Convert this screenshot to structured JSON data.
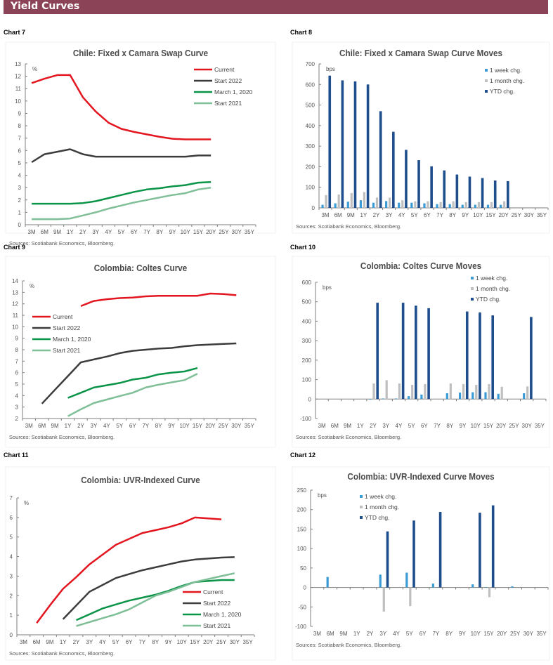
{
  "header": {
    "title": "Yield Curves"
  },
  "colors": {
    "header_bg": "#8b4357",
    "current": "#e3151f",
    "start2022": "#3c3c3c",
    "march2020": "#0a9448",
    "start2021": "#7fbf97",
    "week": "#3a9bd5",
    "month": "#bfbfbf",
    "ytd": "#1f4e8c",
    "axis": "#7f7f7f",
    "title": "#4a4a4a"
  },
  "chart_data": [
    {
      "id": "chart7",
      "label": "Chart 7",
      "type": "line",
      "title": "Chile: Fixed x Camara Swap Curve",
      "unit_label": "%",
      "source": "Sources: Scotiabank Economics, Bloomberg.",
      "categories": [
        "3M",
        "6M",
        "9M",
        "1Y",
        "2Y",
        "3Y",
        "4Y",
        "5Y",
        "6Y",
        "7Y",
        "8Y",
        "9Y",
        "10Y",
        "15Y",
        "20Y",
        "25Y",
        "30Y",
        "35Y"
      ],
      "ylim": [
        0,
        13
      ],
      "yticks": [
        0,
        1,
        2,
        3,
        4,
        5,
        6,
        7,
        8,
        9,
        10,
        11,
        12,
        13
      ],
      "legend_position": "top-right",
      "series": [
        {
          "name": "Current",
          "color_key": "current",
          "values": [
            11.45,
            11.8,
            12.1,
            12.1,
            10.3,
            9.15,
            8.25,
            7.75,
            7.5,
            7.3,
            7.1,
            6.95,
            6.9,
            6.9,
            6.9,
            null,
            null,
            null
          ]
        },
        {
          "name": "Start 2022",
          "color_key": "start2022",
          "values": [
            5.05,
            5.7,
            5.9,
            6.1,
            5.7,
            5.5,
            5.5,
            5.5,
            5.5,
            5.5,
            5.5,
            5.5,
            5.5,
            5.6,
            5.6,
            null,
            null,
            null
          ]
        },
        {
          "name": "March 1, 2020",
          "color_key": "march2020",
          "values": [
            1.7,
            1.7,
            1.7,
            1.7,
            1.75,
            1.9,
            2.15,
            2.4,
            2.65,
            2.85,
            2.95,
            3.1,
            3.2,
            3.4,
            3.45,
            null,
            null,
            null
          ]
        },
        {
          "name": "Start 2021",
          "color_key": "start2021",
          "values": [
            0.45,
            0.45,
            0.45,
            0.5,
            0.75,
            1.0,
            1.3,
            1.55,
            1.8,
            2.0,
            2.2,
            2.4,
            2.55,
            2.85,
            3.0,
            null,
            null,
            null
          ]
        }
      ]
    },
    {
      "id": "chart8",
      "label": "Chart 8",
      "type": "bar",
      "title": "Chile: Fixed x Camara Swap Curve Moves",
      "unit_label": "bps",
      "source": "Sources: Scotiabank Economics, Bloomberg.",
      "categories": [
        "3M",
        "6M",
        "9M",
        "1Y",
        "2Y",
        "3Y",
        "4Y",
        "5Y",
        "6Y",
        "7Y",
        "8Y",
        "9Y",
        "10Y",
        "15Y",
        "20Y",
        "25Y",
        "30Y",
        "35Y"
      ],
      "ylim": [
        0,
        700
      ],
      "yticks": [
        0,
        100,
        200,
        300,
        400,
        500,
        600,
        700
      ],
      "legend_position": "top-right",
      "series": [
        {
          "name": "1 week chg.",
          "color_key": "week",
          "values": [
            15,
            22,
            30,
            37,
            25,
            33,
            25,
            25,
            22,
            18,
            18,
            15,
            15,
            15,
            15,
            null,
            null,
            null
          ]
        },
        {
          "name": "1 month chg.",
          "color_key": "month",
          "values": [
            62,
            65,
            72,
            77,
            50,
            50,
            37,
            32,
            32,
            28,
            32,
            28,
            28,
            28,
            32,
            null,
            null,
            null
          ]
        },
        {
          "name": "YTD chg.",
          "color_key": "ytd",
          "values": [
            643,
            620,
            615,
            600,
            470,
            370,
            282,
            232,
            202,
            182,
            162,
            152,
            145,
            133,
            130,
            null,
            null,
            null
          ]
        }
      ]
    },
    {
      "id": "chart9",
      "label": "Chart 9",
      "type": "line",
      "title": "Colombia: Coltes Curve",
      "unit_label": "%",
      "source": "Sources: Scotiabank Economics, Bloomberg.",
      "categories": [
        "3M",
        "6M",
        "9M",
        "1Y",
        "2Y",
        "3Y",
        "4Y",
        "5Y",
        "6Y",
        "7Y",
        "8Y",
        "9Y",
        "10Y",
        "15Y",
        "20Y",
        "25Y",
        "30Y",
        "35Y"
      ],
      "ylim": [
        2,
        14
      ],
      "yticks": [
        2,
        3,
        4,
        5,
        6,
        7,
        8,
        9,
        10,
        11,
        12,
        13,
        14
      ],
      "legend_position": "left",
      "series": [
        {
          "name": "Current",
          "color_key": "current",
          "values": [
            null,
            null,
            null,
            null,
            11.8,
            12.25,
            12.4,
            12.5,
            12.55,
            12.65,
            12.7,
            12.7,
            12.7,
            12.7,
            12.9,
            12.85,
            12.75,
            null
          ]
        },
        {
          "name": "Start 2022",
          "color_key": "start2022",
          "values": [
            null,
            3.3,
            4.5,
            5.7,
            6.9,
            7.15,
            7.4,
            7.7,
            7.9,
            8.0,
            8.1,
            8.15,
            8.3,
            8.4,
            8.45,
            8.5,
            8.55,
            null
          ]
        },
        {
          "name": "March 1, 2020",
          "color_key": "march2020",
          "values": [
            null,
            null,
            null,
            3.8,
            4.25,
            4.7,
            4.9,
            5.1,
            5.4,
            5.55,
            5.85,
            6.0,
            6.1,
            6.4,
            null,
            null,
            null,
            null
          ]
        },
        {
          "name": "Start 2021",
          "color_key": "start2021",
          "values": [
            null,
            null,
            null,
            2.2,
            2.8,
            3.35,
            3.65,
            3.95,
            4.25,
            4.7,
            4.95,
            5.15,
            5.35,
            5.9,
            null,
            null,
            null,
            null
          ]
        }
      ]
    },
    {
      "id": "chart10",
      "label": "Chart 10",
      "type": "bar",
      "title": "Colombia: Coltes Curve Moves",
      "unit_label": "bps",
      "source": "Sources: Scotiabank Economics, Bloomberg.",
      "categories": [
        "3M",
        "6M",
        "9M",
        "1Y",
        "2Y",
        "3Y",
        "4Y",
        "5Y",
        "6Y",
        "7Y",
        "8Y",
        "9Y",
        "10Y",
        "15Y",
        "20Y",
        "25Y",
        "30Y",
        "35Y"
      ],
      "ylim": [
        -100,
        600
      ],
      "yticks": [
        -100,
        0,
        100,
        200,
        300,
        400,
        500,
        600
      ],
      "legend_position": "top-right",
      "series": [
        {
          "name": "1 week chg.",
          "color_key": "week",
          "values": [
            null,
            null,
            null,
            null,
            -3,
            3,
            3,
            15,
            23,
            null,
            30,
            33,
            35,
            35,
            27,
            null,
            30,
            null
          ]
        },
        {
          "name": "1 month chg.",
          "color_key": "month",
          "values": [
            null,
            null,
            null,
            null,
            80,
            97,
            80,
            73,
            77,
            null,
            80,
            77,
            73,
            77,
            63,
            null,
            65,
            null
          ]
        },
        {
          "name": "YTD chg.",
          "color_key": "ytd",
          "values": [
            null,
            null,
            null,
            null,
            495,
            null,
            495,
            480,
            467,
            null,
            null,
            450,
            445,
            430,
            null,
            null,
            422,
            null
          ]
        }
      ]
    },
    {
      "id": "chart11",
      "label": "Chart 11",
      "type": "line",
      "title": "Colombia: UVR-Indexed Curve",
      "unit_label": "%",
      "source": "Sources: Scotiabank Economics, Bloomberg.",
      "categories": [
        "3M",
        "6M",
        "9M",
        "1Y",
        "2Y",
        "3Y",
        "4Y",
        "5Y",
        "6Y",
        "7Y",
        "8Y",
        "9Y",
        "10Y",
        "15Y",
        "20Y",
        "25Y",
        "30Y",
        "35Y"
      ],
      "ylim": [
        0,
        7
      ],
      "yticks": [
        0,
        1,
        2,
        3,
        4,
        5,
        6,
        7
      ],
      "legend_position": "bottom-right",
      "series": [
        {
          "name": "Current",
          "color_key": "current",
          "values": [
            null,
            0.6,
            1.5,
            2.35,
            2.95,
            3.6,
            4.1,
            4.6,
            4.9,
            5.2,
            5.35,
            5.5,
            5.7,
            6.0,
            5.95,
            5.9,
            null,
            null
          ]
        },
        {
          "name": "Start 2022",
          "color_key": "start2022",
          "values": [
            null,
            null,
            null,
            0.8,
            1.5,
            2.2,
            2.55,
            2.9,
            3.1,
            3.3,
            3.45,
            3.6,
            3.75,
            3.85,
            3.9,
            3.95,
            3.97,
            null
          ]
        },
        {
          "name": "March 1, 2020",
          "color_key": "march2020",
          "values": [
            null,
            null,
            null,
            null,
            0.75,
            1.05,
            1.35,
            1.55,
            1.75,
            1.9,
            2.05,
            2.25,
            2.5,
            2.7,
            2.75,
            2.8,
            2.8,
            null
          ]
        },
        {
          "name": "Start 2021",
          "color_key": "start2021",
          "values": [
            null,
            null,
            null,
            null,
            0.45,
            0.65,
            0.85,
            1.05,
            1.3,
            1.65,
            2.0,
            2.2,
            2.45,
            2.7,
            2.85,
            3.0,
            3.15,
            null
          ]
        }
      ]
    },
    {
      "id": "chart12",
      "label": "Chart 12",
      "type": "bar",
      "title": "Colombia: UVR-Indexed Curve Moves",
      "unit_label": "bps",
      "source": "Sources: Scotiabank Economics, Bloomberg.",
      "categories": [
        "3M",
        "6M",
        "9M",
        "1Y",
        "2Y",
        "3Y",
        "4Y",
        "5Y",
        "6Y",
        "7Y",
        "8Y",
        "9Y",
        "10Y",
        "15Y",
        "20Y",
        "25Y",
        "30Y",
        "35Y"
      ],
      "ylim": [
        -100,
        250
      ],
      "yticks": [
        -100,
        -50,
        0,
        50,
        100,
        150,
        200,
        250
      ],
      "legend_position": "top-left",
      "series": [
        {
          "name": "1 week chg.",
          "color_key": "week",
          "values": [
            null,
            27,
            null,
            null,
            null,
            33,
            null,
            38,
            null,
            10,
            null,
            null,
            8,
            1,
            null,
            3,
            null,
            null
          ]
        },
        {
          "name": "1 month chg.",
          "color_key": "month",
          "values": [
            null,
            null,
            null,
            null,
            null,
            -62,
            null,
            -48,
            null,
            null,
            null,
            null,
            null,
            -25,
            null,
            null,
            null,
            null
          ]
        },
        {
          "name": "YTD chg.",
          "color_key": "ytd",
          "values": [
            null,
            null,
            null,
            null,
            null,
            144,
            null,
            172,
            null,
            194,
            null,
            null,
            192,
            211,
            null,
            null,
            null,
            null
          ]
        }
      ]
    }
  ]
}
